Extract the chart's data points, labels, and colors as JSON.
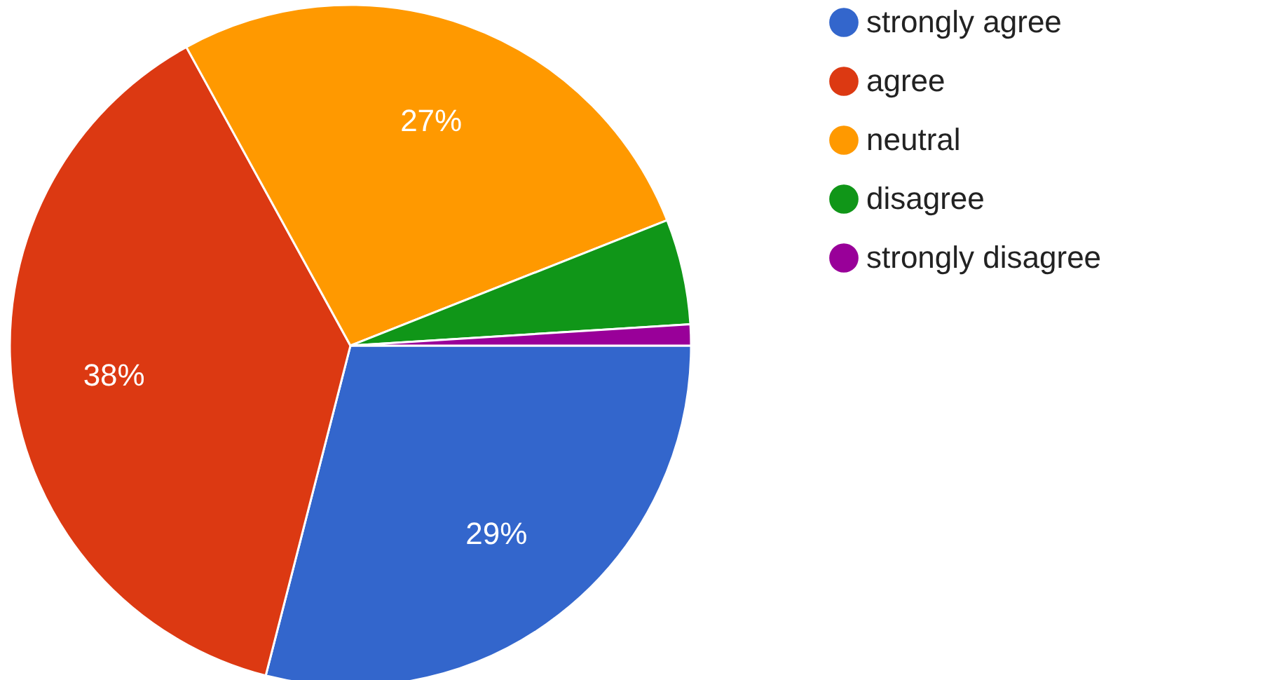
{
  "chart_data": {
    "type": "pie",
    "categories": [
      "strongly agree",
      "agree",
      "neutral",
      "disagree",
      "strongly disagree"
    ],
    "values": [
      29,
      38,
      27,
      5,
      1
    ],
    "value_labels": [
      "29%",
      "38%",
      "27%",
      null,
      null
    ],
    "colors": [
      "#3366cc",
      "#dc3912",
      "#ff9900",
      "#109618",
      "#990099"
    ],
    "legend": "right"
  }
}
